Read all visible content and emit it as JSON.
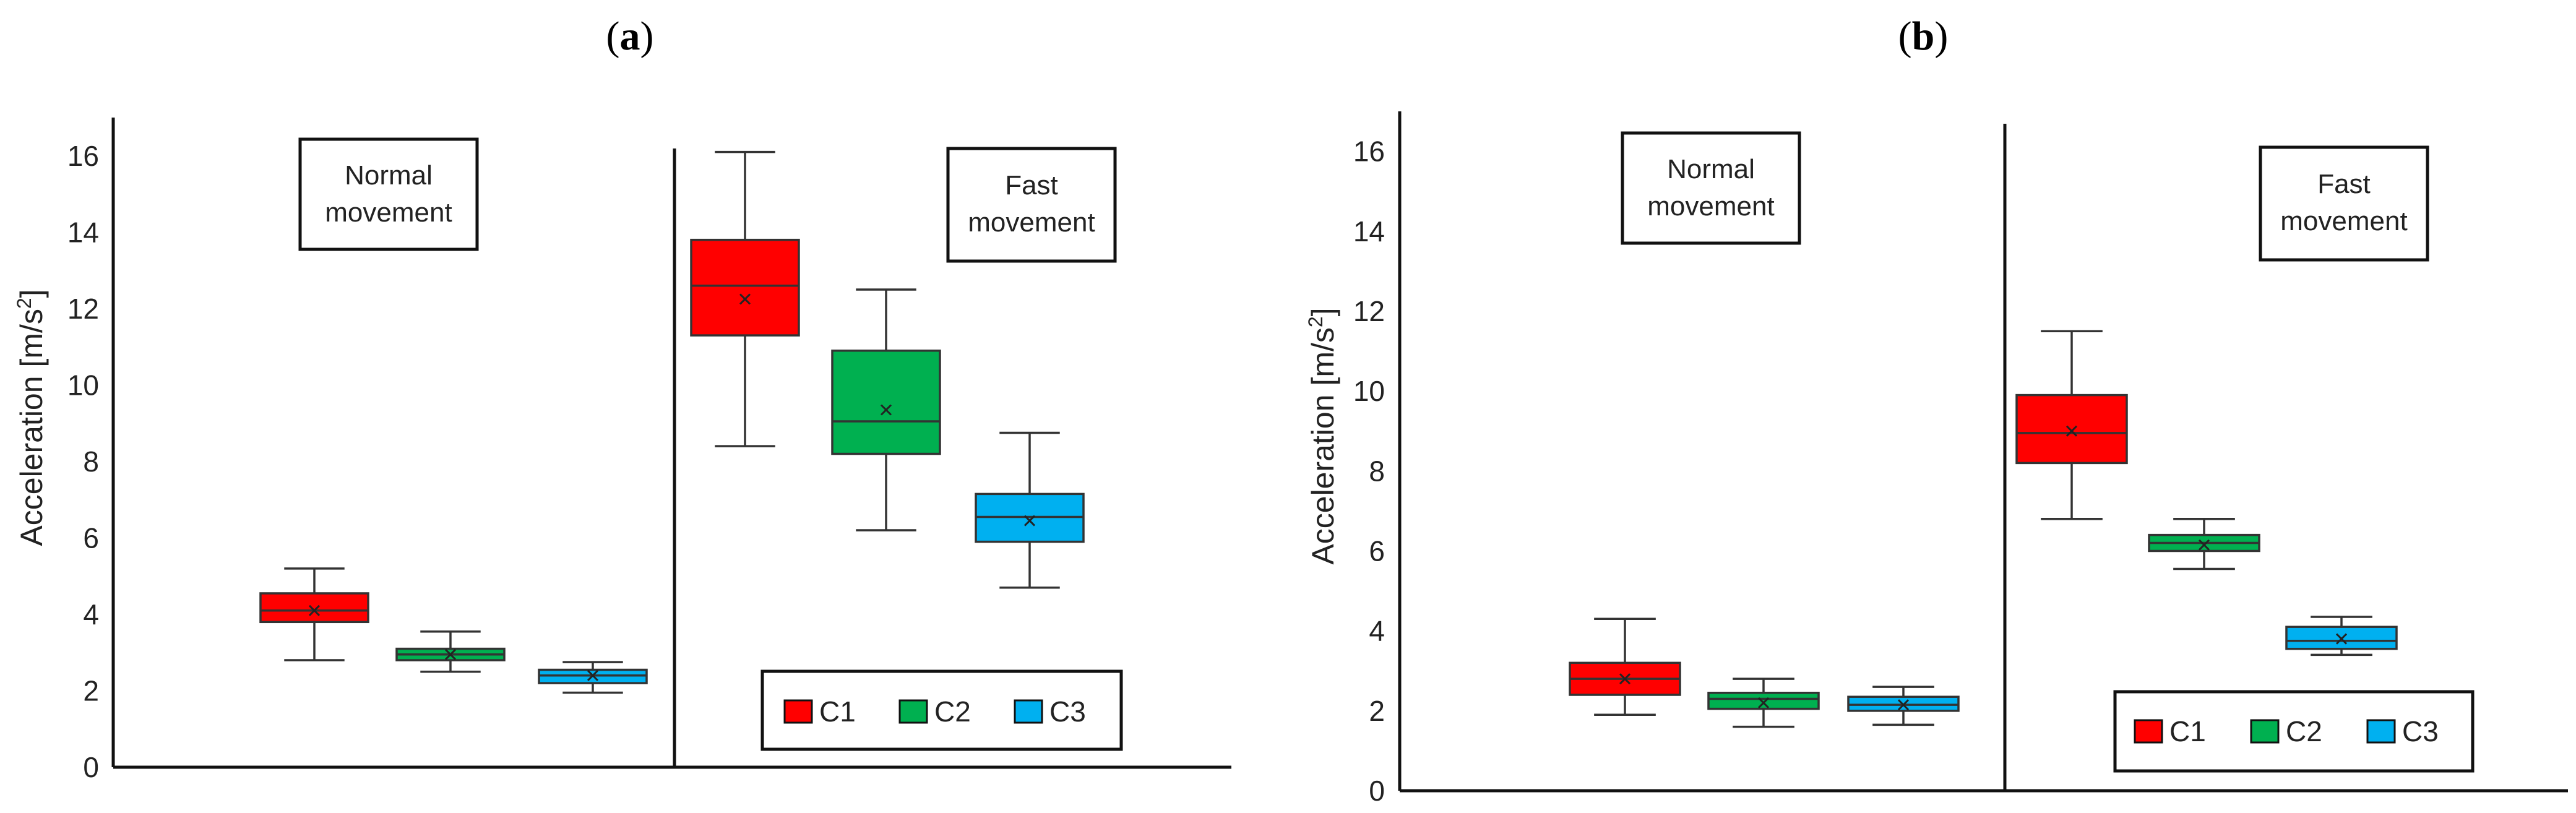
{
  "chart_data": [
    {
      "panel_label": "a",
      "type": "box",
      "title": "",
      "xlabel": "",
      "ylabel": "Acceleration [m/s²]",
      "ylabel_main": "Acceleration [m/s",
      "ylabel_sup": "2",
      "ylabel_end": "]",
      "ylim": [
        0,
        17
      ],
      "yticks": [
        0,
        2,
        4,
        6,
        8,
        10,
        12,
        14,
        16
      ],
      "grid": false,
      "legend_position": "bottom-right",
      "series_names": [
        "C1",
        "C2",
        "C3"
      ],
      "colors": {
        "C1": "#ff0000",
        "C2": "#00b050",
        "C3": "#00b0f0"
      },
      "groups": [
        {
          "label_lines": [
            "Normal",
            "movement"
          ],
          "boxes": [
            {
              "series": "C1",
              "min": 2.8,
              "q1": 3.8,
              "median": 4.1,
              "q3": 4.55,
              "max": 5.2,
              "mean": 4.1
            },
            {
              "series": "C2",
              "min": 2.5,
              "q1": 2.8,
              "median": 2.95,
              "q3": 3.1,
              "max": 3.55,
              "mean": 2.95
            },
            {
              "series": "C3",
              "min": 1.95,
              "q1": 2.2,
              "median": 2.4,
              "q3": 2.55,
              "max": 2.75,
              "mean": 2.4
            }
          ]
        },
        {
          "label_lines": [
            "Fast",
            "movement"
          ],
          "boxes": [
            {
              "series": "C1",
              "min": 8.4,
              "q1": 11.3,
              "median": 12.6,
              "q3": 13.8,
              "max": 16.1,
              "mean": 12.25
            },
            {
              "series": "C2",
              "min": 6.2,
              "q1": 8.2,
              "median": 9.05,
              "q3": 10.9,
              "max": 12.5,
              "mean": 9.35
            },
            {
              "series": "C3",
              "min": 4.7,
              "q1": 5.9,
              "median": 6.55,
              "q3": 7.15,
              "max": 8.75,
              "mean": 6.45
            }
          ]
        }
      ]
    },
    {
      "panel_label": "b",
      "type": "box",
      "title": "",
      "xlabel": "",
      "ylabel": "Acceleration [m/s²]",
      "ylabel_main": "Acceleration [m/s",
      "ylabel_sup": "2",
      "ylabel_end": "]",
      "ylim": [
        0,
        17
      ],
      "yticks": [
        0,
        2,
        4,
        6,
        8,
        10,
        12,
        14,
        16
      ],
      "grid": false,
      "legend_position": "bottom-right",
      "series_names": [
        "C1",
        "C2",
        "C3"
      ],
      "colors": {
        "C1": "#ff0000",
        "C2": "#00b050",
        "C3": "#00b0f0"
      },
      "groups": [
        {
          "label_lines": [
            "Normal",
            "movement"
          ],
          "boxes": [
            {
              "series": "C1",
              "min": 1.9,
              "q1": 2.4,
              "median": 2.8,
              "q3": 3.2,
              "max": 4.3,
              "mean": 2.8
            },
            {
              "series": "C2",
              "min": 1.6,
              "q1": 2.05,
              "median": 2.3,
              "q3": 2.45,
              "max": 2.8,
              "mean": 2.2
            },
            {
              "series": "C3",
              "min": 1.65,
              "q1": 2.0,
              "median": 2.15,
              "q3": 2.35,
              "max": 2.6,
              "mean": 2.15
            }
          ]
        },
        {
          "label_lines": [
            "Fast",
            "movement"
          ],
          "boxes": [
            {
              "series": "C1",
              "min": 6.8,
              "q1": 8.2,
              "median": 8.95,
              "q3": 9.9,
              "max": 11.5,
              "mean": 9.0
            },
            {
              "series": "C2",
              "min": 5.55,
              "q1": 6.0,
              "median": 6.2,
              "q3": 6.4,
              "max": 6.8,
              "mean": 6.15
            },
            {
              "series": "C3",
              "min": 3.4,
              "q1": 3.55,
              "median": 3.75,
              "q3": 4.1,
              "max": 4.35,
              "mean": 3.8
            }
          ]
        }
      ]
    }
  ]
}
